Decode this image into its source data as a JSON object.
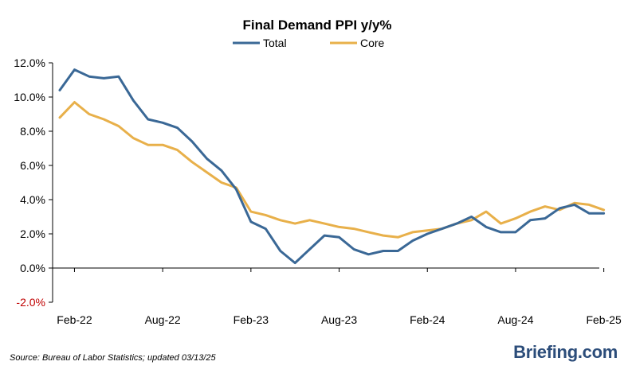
{
  "chart_data": {
    "type": "line",
    "title": "Final Demand PPI y/y%",
    "ylim": [
      -2.0,
      12.0
    ],
    "yticks": [
      "-2.0%",
      "0.0%",
      "2.0%",
      "4.0%",
      "6.0%",
      "8.0%",
      "10.0%",
      "12.0%"
    ],
    "xtick_labels": [
      "Feb-22",
      "Aug-22",
      "Feb-23",
      "Aug-23",
      "Feb-24",
      "Aug-24",
      "Feb-25"
    ],
    "x": [
      "Jan-22",
      "Feb-22",
      "Mar-22",
      "Apr-22",
      "May-22",
      "Jun-22",
      "Jul-22",
      "Aug-22",
      "Sep-22",
      "Oct-22",
      "Nov-22",
      "Dec-22",
      "Jan-23",
      "Feb-23",
      "Mar-23",
      "Apr-23",
      "May-23",
      "Jun-23",
      "Jul-23",
      "Aug-23",
      "Sep-23",
      "Oct-23",
      "Nov-23",
      "Dec-23",
      "Jan-24",
      "Feb-24",
      "Mar-24",
      "Apr-24",
      "May-24",
      "Jun-24",
      "Jul-24",
      "Aug-24",
      "Sep-24",
      "Oct-24",
      "Nov-24",
      "Dec-24",
      "Jan-25",
      "Feb-25"
    ],
    "series": [
      {
        "name": "Total",
        "color": "#3a6896",
        "values": [
          10.4,
          11.6,
          11.2,
          11.1,
          11.2,
          9.8,
          8.7,
          8.5,
          8.2,
          7.4,
          6.4,
          5.7,
          4.6,
          2.7,
          2.3,
          1.0,
          0.3,
          1.1,
          1.9,
          1.8,
          1.1,
          0.8,
          1.0,
          1.0,
          1.6,
          2.0,
          2.3,
          2.6,
          3.0,
          2.4,
          2.1,
          2.1,
          2.8,
          2.9,
          3.5,
          3.7,
          3.2,
          3.2
        ]
      },
      {
        "name": "Core",
        "color": "#e8b04a",
        "values": [
          8.8,
          9.7,
          9.0,
          8.7,
          8.3,
          7.6,
          7.2,
          7.2,
          6.9,
          6.2,
          5.6,
          5.0,
          4.7,
          3.3,
          3.1,
          2.8,
          2.6,
          2.8,
          2.6,
          2.4,
          2.3,
          2.1,
          1.9,
          1.8,
          2.1,
          2.2,
          2.3,
          2.6,
          2.8,
          3.3,
          2.6,
          2.9,
          3.3,
          3.6,
          3.4,
          3.8,
          3.7,
          3.4
        ]
      }
    ],
    "legend_position": "top-center",
    "grid": false
  },
  "footer": {
    "source": "Source: Bureau of Labor Statistics; updated 03/13/25",
    "brand": "Briefing.com"
  }
}
